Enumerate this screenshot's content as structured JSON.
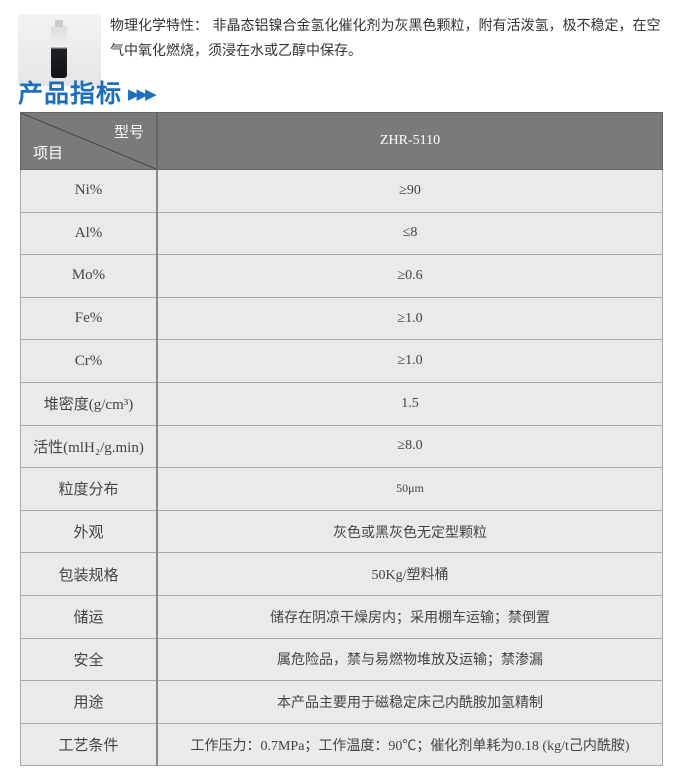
{
  "intro": {
    "text": "物理化学特性： 非晶态铝镍合金氢化催化剂为灰黑色颗粒，附有活泼氢，极不稳定，在空气中氧化燃烧，须浸在水或乙醇中保存。"
  },
  "section_title": "产品指标",
  "section_arrows": "▶▶▶",
  "table": {
    "header": {
      "corner_top": "型号",
      "corner_bottom": "项目",
      "model": "ZHR-5110"
    },
    "rows": [
      {
        "item": "Ni%",
        "value": "≥90"
      },
      {
        "item": "Al%",
        "value": "≤8"
      },
      {
        "item": "Mo%",
        "value": "≥0.6"
      },
      {
        "item": "Fe%",
        "value": "≥1.0"
      },
      {
        "item": "Cr%",
        "value": "≥1.0"
      },
      {
        "item": "堆密度(g/cm³)",
        "value": "1.5"
      },
      {
        "item": "活性(mlH₂/g.min)",
        "value": "≥8.0"
      },
      {
        "item": "粒度分布",
        "value": "50μm"
      },
      {
        "item": "外观",
        "value": "灰色或黑灰色无定型颗粒"
      },
      {
        "item": "包装规格",
        "value": "50Kg/塑料桶"
      },
      {
        "item": "储运",
        "value": "储存在阴凉干燥房内；采用棚车运输；禁倒置"
      },
      {
        "item": "安全",
        "value": "属危险品，禁与易燃物堆放及运输；禁渗漏"
      },
      {
        "item": "用途",
        "value": "本产品主要用于磁稳定床己内酰胺加氢精制"
      },
      {
        "item": "工艺条件",
        "value": "工作压力：0.7MPa；工作温度：90℃；催化剂单耗为0.18 (kg/t己内酰胺)"
      }
    ]
  }
}
